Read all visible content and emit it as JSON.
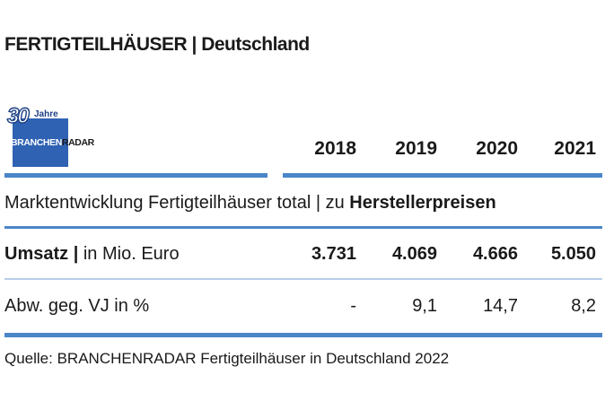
{
  "title": "FERTIGTEILHÄUSER | Deutschland",
  "logo": {
    "number": "30",
    "jahre": "Jahre",
    "word_part1": "BRANCHEN",
    "word_part2": "RADAR"
  },
  "years": [
    "2018",
    "2019",
    "2020",
    "2021"
  ],
  "subheading": {
    "prefix": "Marktentwicklung Fertigteilhäuser total | zu ",
    "bold": "Herstellerpreisen"
  },
  "rows": [
    {
      "label_bold": "Umsatz |",
      "label_rest": " in Mio. Euro",
      "values": [
        "3.731",
        "4.069",
        "4.666",
        "5.050"
      ]
    },
    {
      "label_bold": "",
      "label_rest": "Abw. geg. VJ in %",
      "values": [
        "-",
        "9,1",
        "14,7",
        "8,2"
      ]
    }
  ],
  "source": "Quelle: BRANCHENRADAR Fertigteilhäuser in Deutschland 2022",
  "colors": {
    "accent_bar": "#4a86c8",
    "logo_blue": "#2f62b3"
  }
}
